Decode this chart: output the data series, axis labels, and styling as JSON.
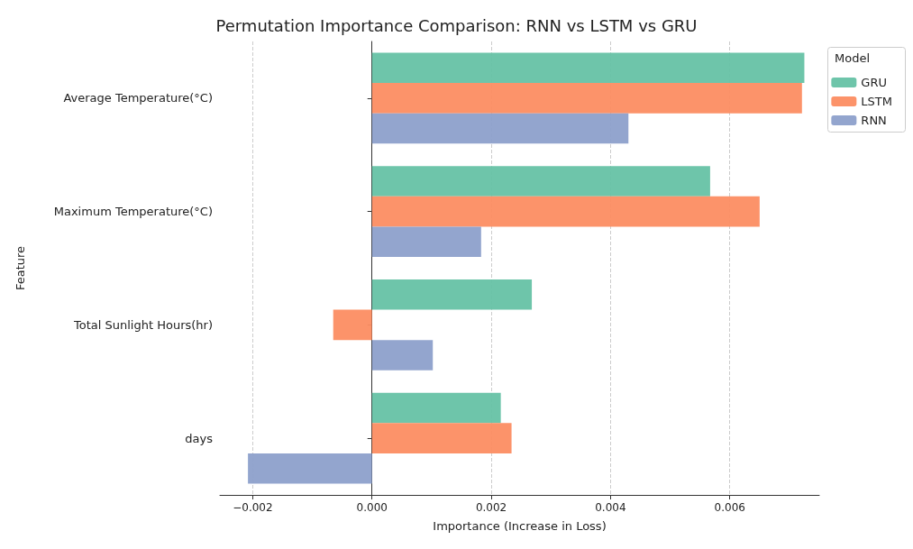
{
  "chart_data": {
    "type": "bar",
    "orientation": "horizontal",
    "title": "Permutation Importance Comparison: RNN vs LSTM vs GRU",
    "xlabel": "Importance (Increase in Loss)",
    "ylabel": "Feature",
    "legend_title": "Model",
    "legend": "top right",
    "grid": "x",
    "categories": [
      "Average Temperature(°C)",
      "Maximum Temperature(°C)",
      "Total Sunlight Hours(hr)",
      "days"
    ],
    "series": [
      {
        "name": "GRU",
        "color": "#66c2a5",
        "values": [
          0.00725,
          0.00567,
          0.00268,
          0.00216
        ]
      },
      {
        "name": "LSTM",
        "color": "#fc8d62",
        "values": [
          0.00721,
          0.0065,
          -0.00065,
          0.00234
        ]
      },
      {
        "name": "RNN",
        "color": "#8da0cb",
        "values": [
          0.0043,
          0.00183,
          0.00102,
          -0.00208
        ]
      }
    ],
    "xlim": [
      -0.00255,
      0.0075
    ],
    "xticks": [
      {
        "value": -0.002,
        "label": "−0.002"
      },
      {
        "value": 0,
        "label": "0.000"
      },
      {
        "value": 0.002,
        "label": "0.002"
      },
      {
        "value": 0.004,
        "label": "0.004"
      },
      {
        "value": 0.006,
        "label": "0.006"
      }
    ]
  }
}
